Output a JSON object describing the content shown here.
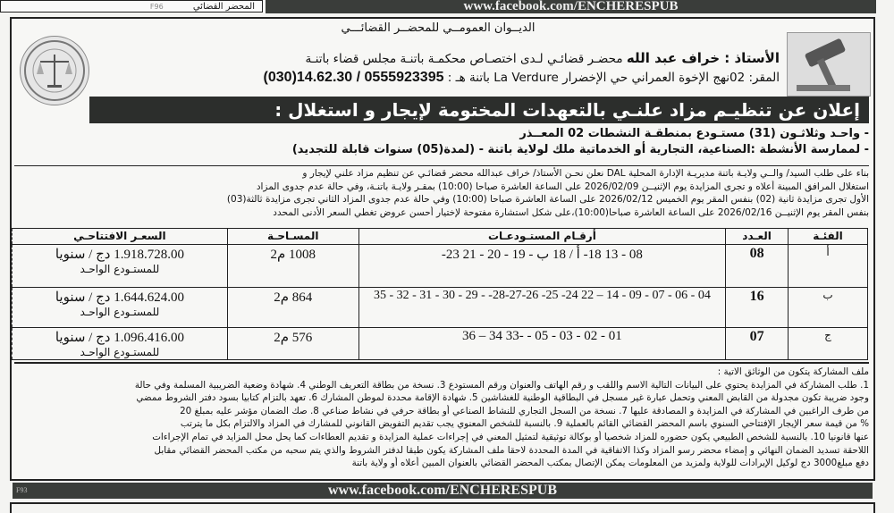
{
  "top_strip": {
    "section": "المحضر القضائي",
    "page": "F96",
    "banner_url": "www.facebook.com/ENCHERESPUB"
  },
  "header": {
    "office": "الديــوان العمومــي للمحضــر القضائـــي",
    "bailiff_name": "الأستاذ : خراف عبد الله",
    "bailiff_desc": "محضـر قضائـي لـدى اختصـاص محكمـة باتنـة مجلس قضاء باتنـة",
    "address": "المقر: 02نهج الإخوة العمراني حي الإخضرار La Verdure باتنة هـ :",
    "phones": "(030)14.62.30 / 0555923395"
  },
  "title": "إعلان عن تنظيـم مزاد علنـي بالتعهدات المختومة لإيجار و استغلال :",
  "bullets": [
    "- واحـد وثلاثـون (31) مستـودع بمنطقـة النشطات 02 المعــذر",
    "- لممارسة الأنشطة :الصناعية، التجارية أو الخدماتية ملك لولاية باتنة - (لمدة(05) سنوات قابلة للتجديد)"
  ],
  "intro_paragraph": [
    "بناء على طلب السيد/ والــي ولايـة باتنة مديريـة الإدارة المحلية DAL نعلن نحـن الأستاذ/ خراف عبدالله محضر قضائـي عن تنظيم مزاد علني لإيجار و",
    "استغلال المرافق المبينة أعلاه و تجرى المزايدة يوم الإثنيــن 2026/02/09 على الساعة العاشرة صباحا (10:00) بمقـر ولايـة باتنـة، وفي حالة عدم جدوى المزاد",
    "الأول تجرى مزايدة ثانية (02) بنفس المقر يوم الخميس 2026/02/12 على الساعة العاشرة صباحا (10:00) وفي حالة عدم جدوى المزاد الثاني تجرى مزايدة ثالثة(03)",
    "بنفس المقر يوم الإثنيــن 2026/02/16 على الساعة العاشرة صباحا(10:00)،على شكل استشارة مفتوحة لإختيار أحسن عروض تغطي السعر الأدنى المحدد"
  ],
  "table": {
    "headers": {
      "category": "الفئـة",
      "count": "العـدد",
      "numbers": "أرقـام المستـودعـات",
      "area": "المسـاحـة",
      "price": "السعـر الافتتاحـي"
    },
    "rows": [
      {
        "category": "أ",
        "count": "08",
        "numbers": "08 - 13 18- أ / 18 ب - 19 - 20 - 21 23-",
        "area": "1008 م2",
        "price": "1.918.728.00 دج / سنويا",
        "price_note": "للمستـودع الواحـد"
      },
      {
        "category": "ب",
        "count": "16",
        "numbers": "04 - 06 - 07 - 09 - 14 – 22 24- 25- 28-27-26- - 29 - 30 - 31 - 32 - 35",
        "area": "864 م2",
        "price": "1.644.624.00 دج / سنويا",
        "price_note": "للمستـودع الواحـد"
      },
      {
        "category": "ج",
        "count": "07",
        "numbers": "01 - 02 - 03 - 05 - -33 34 – 36",
        "area": "576 م2",
        "price": "1.096.416.00 دج / سنويا",
        "price_note": "للمستـودع الواحـد"
      }
    ]
  },
  "documents": {
    "heading": "ملف المشاركة يتكون من الوثائق الاتية :",
    "lines": [
      "1. طلب المشاركة في المزايدة يحتوي على البيانات التالية الاسم واللقب و رقم الهاتف والعنوان ورقم المستودع 3. نسخة من بطاقة التعريف الوطني 4. شهادة وضعية الضريبية المسلمة وفي حالة",
      "وجود ضريبة تكون مجدولة من القابض المعني وتحمل عبارة غير مسجل في البطاقية الوطنية للغشاشين 5. شهادة الإقامة محددة لموطن المشارك 6. تعهد بالتزام كتابيا بسود دفتر الشروط ممضي",
      "من طرف الراغبين في المشاركة في المزايدة و المصادقة عليها 7. نسخة من السجل التجاري للنشاط الصناعي أو بطاقة حرفي في نشاط صناعي 8. صك الضمان مؤشر عليه بمبلغ 20",
      "% من قيمة سعر الإيجار الإفتتاحي السنوي باسم المحضر القضائي القائم بالعملية 9. بالنسبة للشخص المعنوي يجب تقديم التفويض القانوني للمشارك في المزاد والالتزام بكل ما يترتب",
      "عنها قانونيا 10. بالنسبة للشخص الطبيعي يكون حضوره للمزاد شخصيا أو بوكالة توثيقية لتمثيل المعني في إجراءات عملية المزايدة و تقديم العطاءات كما يحل محل المزايد في تمام الإجراءات",
      "اللاحقة تسديد الضمان النهائي و إمضاء محضر رسو المزاد وكذا الاتفاقية في المدة المحددة لاحقا ملف المشاركة يكون طبقا لدفتر الشروط والذي يتم سحبه من مكتب المحضر القضائي مقابل",
      "دفع مبلغ3000 دج لوكيل الإيرادات للولاية ولمزيد من المعلومات يمكن الإتصال بمكتب المحضر القضائي بالعنوان المبين أعلاه أو ولاية باتنة"
    ]
  },
  "footer": {
    "page": "F93",
    "banner_url": "www.facebook.com/ENCHERESPUB"
  },
  "colors": {
    "banner": "#3a3d3a",
    "title_bar": "#2c2e2c",
    "paper": "#f4f4f2"
  },
  "logos": [
    "scales-of-justice-seal-icon",
    "gavel-icon"
  ]
}
